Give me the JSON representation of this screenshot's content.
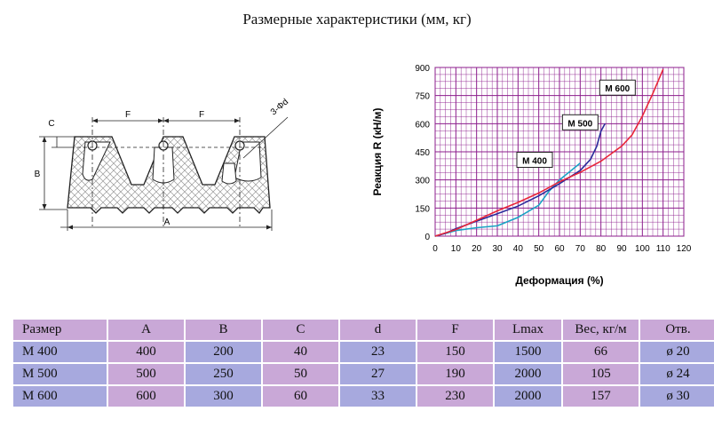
{
  "title": "Размерные характеристики (мм, кг)",
  "diagram": {
    "labels": {
      "f": "F",
      "c": "C",
      "b": "B",
      "a": "A",
      "holes": "3-Φd"
    }
  },
  "chart_data": {
    "type": "line",
    "title": "",
    "xlabel": "Деформация (%)",
    "ylabel": "Реакция R (кН/м)",
    "xlim": [
      0,
      120
    ],
    "ylim": [
      0,
      900
    ],
    "x_ticks": [
      0,
      10,
      20,
      30,
      40,
      50,
      60,
      70,
      80,
      90,
      100,
      110,
      120
    ],
    "y_ticks": [
      0,
      150,
      300,
      450,
      600,
      750,
      900
    ],
    "grid": true,
    "series": [
      {
        "name": "М 400",
        "color": "#1aa3c4",
        "points": [
          [
            0,
            0
          ],
          [
            10,
            30
          ],
          [
            20,
            45
          ],
          [
            30,
            55
          ],
          [
            40,
            100
          ],
          [
            50,
            165
          ],
          [
            55,
            240
          ],
          [
            60,
            300
          ],
          [
            65,
            345
          ],
          [
            70,
            390
          ]
        ],
        "label_pos": [
          48,
          405
        ]
      },
      {
        "name": "М 500",
        "color": "#2a2a9a",
        "points": [
          [
            0,
            0
          ],
          [
            5,
            15
          ],
          [
            10,
            40
          ],
          [
            20,
            80
          ],
          [
            30,
            120
          ],
          [
            40,
            160
          ],
          [
            50,
            215
          ],
          [
            60,
            280
          ],
          [
            70,
            350
          ],
          [
            75,
            410
          ],
          [
            78,
            480
          ],
          [
            80,
            560
          ],
          [
            82,
            600
          ]
        ],
        "label_pos": [
          70,
          605
        ]
      },
      {
        "name": "М 600",
        "color": "#e8263a",
        "points": [
          [
            0,
            0
          ],
          [
            10,
            35
          ],
          [
            20,
            85
          ],
          [
            30,
            135
          ],
          [
            40,
            180
          ],
          [
            50,
            230
          ],
          [
            60,
            290
          ],
          [
            70,
            340
          ],
          [
            80,
            400
          ],
          [
            90,
            480
          ],
          [
            95,
            540
          ],
          [
            100,
            640
          ],
          [
            105,
            760
          ],
          [
            110,
            890
          ]
        ],
        "label_pos": [
          88,
          790
        ]
      }
    ]
  },
  "table": {
    "headers": [
      "Размер",
      "A",
      "B",
      "C",
      "d",
      "F",
      "Lmax",
      "Вес, кг/м",
      "Отв."
    ],
    "rows": [
      [
        "М 400",
        "400",
        "200",
        "40",
        "23",
        "150",
        "1500",
        "66",
        "ø 20"
      ],
      [
        "М 500",
        "500",
        "250",
        "50",
        "27",
        "190",
        "2000",
        "105",
        "ø 24"
      ],
      [
        "М 600",
        "600",
        "300",
        "60",
        "33",
        "230",
        "2000",
        "157",
        "ø 30"
      ]
    ]
  }
}
